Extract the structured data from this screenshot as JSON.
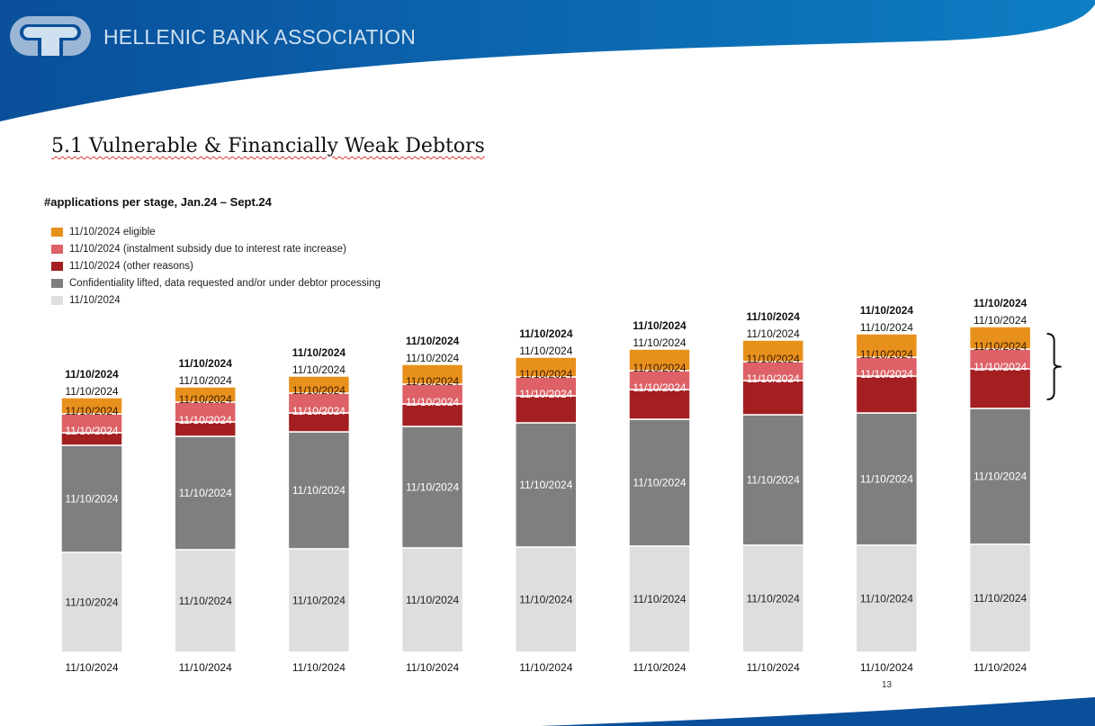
{
  "header": {
    "organization": "HELLENIC BANK ASSOCIATION",
    "logo": "hba-logo-icon"
  },
  "slide": {
    "title": "5.1 Vulnerable & Financially Weak Debtors",
    "page_number": "13"
  },
  "colors": {
    "header_blue": "#0a5ca8",
    "eligible": "#e8901c",
    "instalment_subsidy": "#dd6166",
    "other_reasons": "#a31f22",
    "processing": "#7f7f7f",
    "base": "#dedede"
  },
  "chart_data": {
    "type": "bar",
    "stacked": true,
    "title": "#applications per stage, Jan.24 – Sept.24",
    "xlabel": "",
    "ylabel": "",
    "value_units": "relative (labels obscured in source)",
    "categories": [
      "11/10/2024",
      "11/10/2024",
      "11/10/2024",
      "11/10/2024",
      "11/10/2024",
      "11/10/2024",
      "11/10/2024",
      "11/10/2024",
      "11/10/2024"
    ],
    "series": [
      {
        "name": "11/10/2024",
        "key": "base",
        "color": "#dedede",
        "values": [
          111,
          114,
          115,
          116,
          117,
          118,
          119,
          119,
          120
        ],
        "labels": [
          "11/10/2024",
          "11/10/2024",
          "11/10/2024",
          "11/10/2024",
          "11/10/2024",
          "11/10/2024",
          "11/10/2024",
          "11/10/2024",
          "11/10/2024"
        ]
      },
      {
        "name": "Confidentiality lifted, data requested and/or under debtor processing",
        "key": "processing",
        "color": "#7f7f7f",
        "values": [
          119,
          126,
          130,
          135,
          138,
          141,
          145,
          147,
          151
        ],
        "labels": [
          "11/10/2024",
          "11/10/2024",
          "11/10/2024",
          "11/10/2024",
          "11/10/2024",
          "11/10/2024",
          "11/10/2024",
          "11/10/2024",
          "11/10/2024"
        ]
      },
      {
        "name": "11/10/2024 (other reasons)",
        "key": "other_reasons",
        "color": "#a31f22",
        "values": [
          14,
          16,
          21,
          25,
          30,
          33,
          38,
          41,
          44
        ],
        "labels": [
          "",
          "",
          "",
          "",
          "",
          "",
          "",
          "",
          ""
        ]
      },
      {
        "name": "11/10/2024 (instalment subsidy due to interest rate increase)",
        "key": "instalment_subsidy",
        "color": "#dd6166",
        "values": [
          21,
          22,
          22,
          22,
          21,
          21,
          21,
          21,
          22
        ],
        "labels": [
          "11/10/2024",
          "11/10/2024",
          "11/10/2024",
          "11/10/2024",
          "11/10/2024",
          "11/10/2024",
          "11/10/2024",
          "11/10/2024",
          "11/10/2024"
        ]
      },
      {
        "name": "11/10/2024 eligible",
        "key": "eligible",
        "color": "#e8901c",
        "values": [
          18,
          17,
          19,
          22,
          22,
          24,
          24,
          26,
          25
        ],
        "labels": [
          "11/10/2024",
          "11/10/2024",
          "11/10/2024",
          "11/10/2024",
          "11/10/2024",
          "11/10/2024",
          "11/10/2024",
          "11/10/2024",
          "11/10/2024"
        ]
      }
    ],
    "eligible_top_labels": [
      "11/10/2024",
      "11/10/2024",
      "11/10/2024",
      "11/10/2024",
      "11/10/2024",
      "11/10/2024",
      "11/10/2024",
      "11/10/2024",
      "11/10/2024"
    ],
    "total_labels": [
      "11/10/2024",
      "11/10/2024",
      "11/10/2024",
      "11/10/2024",
      "11/10/2024",
      "11/10/2024",
      "11/10/2024",
      "11/10/2024",
      "11/10/2024"
    ],
    "legend": [
      {
        "label": "11/10/2024 eligible",
        "color": "#e8901c"
      },
      {
        "label": "11/10/2024 (instalment subsidy due to interest rate increase)",
        "color": "#dd6166"
      },
      {
        "label": "11/10/2024 (other reasons)",
        "color": "#a31f22"
      },
      {
        "label": "Confidentiality lifted, data requested and/or under debtor processing",
        "color": "#7f7f7f"
      },
      {
        "label": "11/10/2024",
        "color": "#dedede"
      }
    ],
    "legend_position": "top-left",
    "grid": false,
    "annotations": [
      "brace grouping eligible, instalment subsidy and other reasons segments of last bar"
    ]
  }
}
